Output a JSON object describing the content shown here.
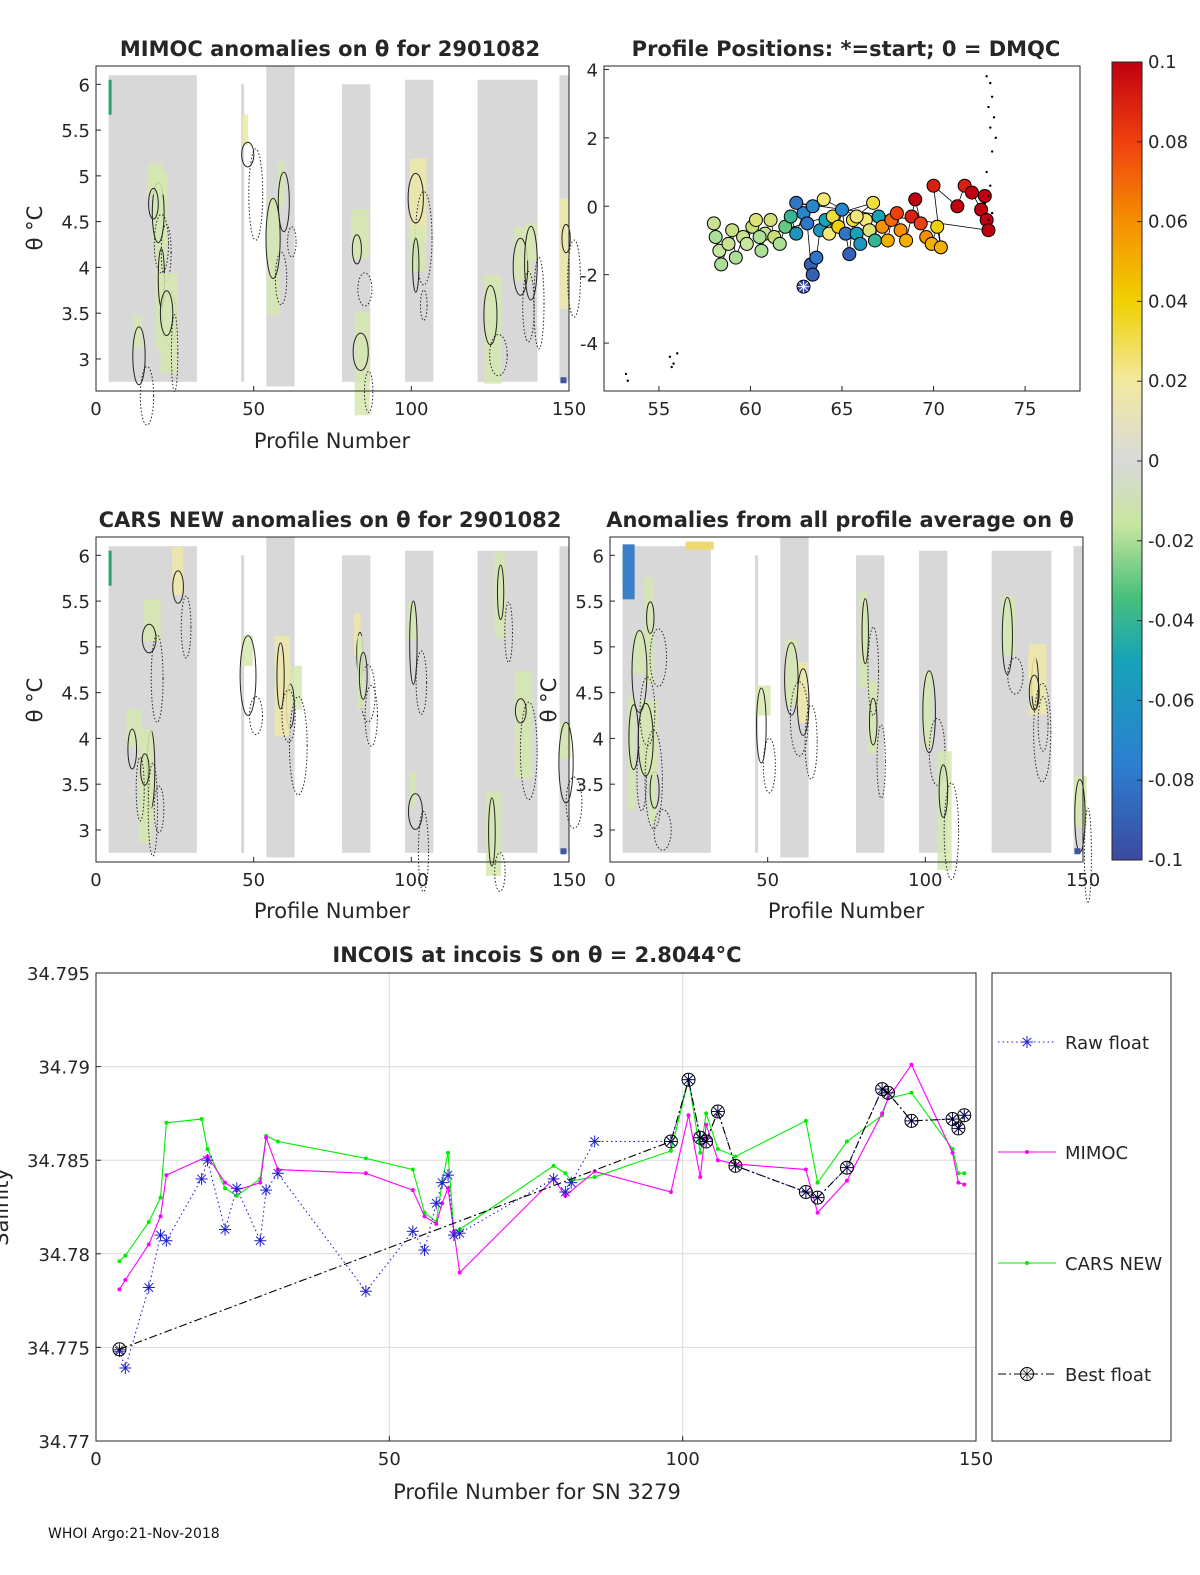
{
  "footer": "WHOI Argo:21-Nov-2018",
  "panels": {
    "mimoc": {
      "title": "MIMOC anomalies on θ  for 2901082",
      "xlabel": "Profile Number",
      "ylabel": "θ °C"
    },
    "positions": {
      "title": "Profile Positions: *=start; 0 = DMQC"
    },
    "cars": {
      "title": "CARS NEW anomalies on θ for 2901082",
      "xlabel": "Profile Number",
      "ylabel": "θ °C"
    },
    "allavg": {
      "title": "Anomalies from all profile average on θ",
      "xlabel": "Profile Number",
      "ylabel": "θ °C"
    }
  },
  "colors": {
    "raw": "#1f1fd0",
    "mimoc": "#ff00ff",
    "cars": "#00ee00",
    "best": "#000000",
    "contour_fill": "#d8d8d8"
  },
  "chart_data": [
    {
      "type": "heatmap",
      "id": "mimoc",
      "title": "MIMOC anomalies on θ  for 2901082",
      "xlabel": "Profile Number",
      "ylabel": "θ °C",
      "xlim": [
        0,
        150
      ],
      "ylim": [
        2.65,
        6.2
      ],
      "xticks": [
        0,
        50,
        100,
        150
      ],
      "yticks": [
        3,
        3.5,
        4,
        4.5,
        5,
        5.5,
        6
      ],
      "profile_blocks": [
        [
          4,
          32,
          2.75,
          6.1
        ],
        [
          46,
          47,
          2.75,
          6.0
        ],
        [
          54,
          63,
          2.7,
          6.2
        ],
        [
          78,
          87,
          2.75,
          6.0
        ],
        [
          98,
          107,
          2.75,
          6.05
        ],
        [
          121,
          140,
          2.75,
          6.05
        ],
        [
          147,
          150,
          2.75,
          6.1
        ]
      ]
    },
    {
      "type": "scatter",
      "id": "positions",
      "title": "Profile Positions: *=start; 0 = DMQC",
      "xlim": [
        52,
        78
      ],
      "ylim": [
        -5.4,
        4.1
      ],
      "xticks": [
        55,
        60,
        65,
        70,
        75
      ],
      "yticks": [
        -4,
        -2,
        0,
        2,
        4
      ],
      "start": [
        62.9,
        -2.35
      ],
      "points": [
        [
          58,
          -0.5,
          -0.01
        ],
        [
          58.1,
          -0.9,
          -0.02
        ],
        [
          58.3,
          -1.3,
          -0.015
        ],
        [
          58.4,
          -1.7,
          -0.02
        ],
        [
          58.8,
          -1.1,
          -0.01
        ],
        [
          59,
          -0.7,
          -0.005
        ],
        [
          59.2,
          -1.5,
          -0.02
        ],
        [
          59.6,
          -0.9,
          -0.01
        ],
        [
          59.8,
          -1.1,
          -0.015
        ],
        [
          60.1,
          -0.6,
          0.0
        ],
        [
          60.3,
          -0.4,
          0.01
        ],
        [
          60.6,
          -1.3,
          -0.02
        ],
        [
          60.8,
          -0.8,
          -0.01
        ],
        [
          61.1,
          -0.4,
          0.005
        ],
        [
          61.3,
          -0.9,
          0.0
        ],
        [
          61.6,
          -1.1,
          -0.02
        ],
        [
          61.9,
          -0.6,
          -0.03
        ],
        [
          62.2,
          -0.3,
          -0.04
        ],
        [
          62.5,
          -0.8,
          -0.06
        ],
        [
          62.9,
          -0.2,
          -0.07
        ],
        [
          63.1,
          -0.5,
          -0.08
        ],
        [
          63.3,
          -1.7,
          -0.09
        ],
        [
          63.4,
          -2.0,
          -0.09
        ],
        [
          63.6,
          -1.5,
          -0.08
        ],
        [
          63.8,
          -0.7,
          -0.06
        ],
        [
          64.1,
          -0.4,
          -0.05
        ],
        [
          64.3,
          -0.8,
          0.02
        ],
        [
          64.5,
          -0.3,
          0.03
        ],
        [
          64.8,
          -0.6,
          0.04
        ],
        [
          65,
          -0.1,
          -0.07
        ],
        [
          65.2,
          -0.8,
          -0.08
        ],
        [
          65.4,
          -1.4,
          -0.09
        ],
        [
          65.6,
          -0.4,
          0.03
        ],
        [
          65.8,
          -0.8,
          -0.05
        ],
        [
          66,
          -1.1,
          -0.06
        ],
        [
          66.3,
          -0.4,
          0.02
        ],
        [
          66.5,
          -0.7,
          0.01
        ],
        [
          66.8,
          -1.0,
          -0.04
        ],
        [
          67,
          -0.3,
          -0.05
        ],
        [
          67.2,
          -0.6,
          0.06
        ],
        [
          67.5,
          -1.0,
          0.05
        ],
        [
          67.7,
          -0.4,
          0.07
        ],
        [
          68,
          -0.2,
          0.08
        ],
        [
          68.2,
          -0.7,
          0.06
        ],
        [
          68.5,
          -1.0,
          0.05
        ],
        [
          68.8,
          -0.3,
          0.09
        ],
        [
          69,
          0.2,
          0.1
        ],
        [
          69.3,
          -0.5,
          0.08
        ],
        [
          69.6,
          -0.9,
          0.06
        ],
        [
          69.9,
          -1.1,
          0.05
        ],
        [
          70.2,
          -0.6,
          0.04
        ],
        [
          70.4,
          -1.2,
          0.05
        ],
        [
          70,
          0.6,
          0.09
        ],
        [
          71.3,
          0.0,
          0.1
        ],
        [
          71.7,
          0.6,
          0.09
        ],
        [
          72.1,
          0.4,
          0.1
        ],
        [
          72.6,
          -0.1,
          0.1
        ],
        [
          72.8,
          0.3,
          0.1
        ],
        [
          72.9,
          -0.4,
          0.1
        ],
        [
          73,
          -0.7,
          0.1
        ],
        [
          62.5,
          0.1,
          -0.08
        ],
        [
          63.4,
          0.0,
          -0.07
        ],
        [
          64,
          0.2,
          0.02
        ],
        [
          65.8,
          -0.3,
          0.02
        ],
        [
          66.7,
          0.1,
          0.03
        ],
        [
          60.5,
          -0.9,
          -0.02
        ]
      ]
    },
    {
      "type": "heatmap",
      "id": "cars",
      "title": "CARS NEW anomalies on θ for 2901082",
      "xlabel": "Profile Number",
      "ylabel": "θ °C",
      "xlim": [
        0,
        150
      ],
      "ylim": [
        2.65,
        6.2
      ],
      "xticks": [
        0,
        50,
        100,
        150
      ],
      "yticks": [
        3,
        3.5,
        4,
        4.5,
        5,
        5.5,
        6
      ]
    },
    {
      "type": "heatmap",
      "id": "allavg",
      "title": "Anomalies from all profile average on θ",
      "xlabel": "Profile Number",
      "ylabel": "θ °C",
      "xlim": [
        0,
        150
      ],
      "ylim": [
        2.65,
        6.2
      ],
      "xticks": [
        0,
        50,
        100,
        150
      ],
      "yticks": [
        3,
        3.5,
        4,
        4.5,
        5,
        5.5,
        6
      ]
    },
    {
      "type": "colorbar",
      "id": "colorbar",
      "range": [
        -0.1,
        0.1
      ],
      "tick_labels": [
        "0.1",
        "0.08",
        "0.06",
        "0.04",
        "0.02",
        "0",
        "-0.02",
        "-0.04",
        "-0.06",
        "-0.08",
        "-0.1"
      ],
      "tick_values": [
        0.1,
        0.08,
        0.06,
        0.04,
        0.02,
        0,
        -0.02,
        -0.04,
        -0.06,
        -0.08,
        -0.1
      ]
    },
    {
      "type": "line",
      "id": "incois",
      "title": "INCOIS at incois S on θ = 2.8044°C",
      "xlabel": "Profile Number for SN 3279",
      "ylabel": "Salinity",
      "xlim": [
        0,
        150
      ],
      "ylim": [
        34.77,
        34.795
      ],
      "xticks": [
        0,
        50,
        100,
        150
      ],
      "yticks": [
        34.77,
        34.775,
        34.78,
        34.785,
        34.79,
        34.795
      ],
      "ytick_labels": [
        "34.77",
        "34.775",
        "34.78",
        "34.785",
        "34.79",
        "34.795"
      ],
      "series": [
        {
          "name": "Raw float",
          "style": "dotted-star",
          "x": [
            4,
            5,
            9,
            11,
            12,
            18,
            19,
            22,
            24,
            28,
            29,
            31,
            46,
            54,
            56,
            58,
            59,
            60,
            61,
            62,
            78,
            80,
            81,
            85,
            98,
            101,
            103,
            104,
            106,
            109,
            121,
            123,
            128,
            134,
            135,
            139,
            146,
            147,
            148
          ],
          "y": [
            34.7748,
            34.7739,
            34.7782,
            34.781,
            34.7807,
            34.784,
            34.785,
            34.7813,
            34.7835,
            34.7807,
            34.7834,
            34.7843,
            34.778,
            34.7812,
            34.7802,
            34.7827,
            34.7838,
            34.7842,
            34.781,
            34.7811,
            34.784,
            34.7833,
            34.7838,
            34.786,
            34.786,
            34.7893,
            34.7862,
            34.786,
            34.7876,
            34.7847,
            34.7833,
            34.783,
            34.7846,
            34.7888,
            34.7886,
            34.7871,
            34.7872,
            34.7867,
            34.7874
          ]
        },
        {
          "name": "MIMOC",
          "style": "solid-dot",
          "x": [
            4,
            5,
            9,
            11,
            12,
            19,
            22,
            24,
            28,
            29,
            31,
            46,
            54,
            56,
            58,
            59,
            60,
            61,
            62,
            78,
            80,
            85,
            98,
            101,
            103,
            104,
            106,
            109,
            121,
            123,
            128,
            134,
            135,
            139,
            146,
            147,
            148
          ],
          "y": [
            34.7781,
            34.7786,
            34.7805,
            34.782,
            34.7842,
            34.7852,
            34.7838,
            34.7834,
            34.7838,
            34.7862,
            34.7845,
            34.7843,
            34.7834,
            34.782,
            34.7816,
            34.7827,
            34.7835,
            34.7812,
            34.779,
            34.784,
            34.7831,
            34.7844,
            34.7833,
            34.7874,
            34.7841,
            34.7869,
            34.785,
            34.7848,
            34.7845,
            34.7822,
            34.7839,
            34.7875,
            34.7883,
            34.7901,
            34.7854,
            34.7838,
            34.7837
          ]
        },
        {
          "name": "CARS NEW",
          "style": "solid-dot",
          "x": [
            4,
            5,
            9,
            11,
            12,
            18,
            19,
            22,
            24,
            28,
            29,
            31,
            46,
            54,
            56,
            58,
            59,
            60,
            61,
            62,
            78,
            80,
            81,
            85,
            98,
            101,
            103,
            104,
            106,
            109,
            121,
            123,
            128,
            134,
            135,
            139,
            146,
            147,
            148
          ],
          "y": [
            34.7796,
            34.7799,
            34.7817,
            34.783,
            34.787,
            34.7872,
            34.7856,
            34.7835,
            34.7831,
            34.784,
            34.7863,
            34.786,
            34.7851,
            34.7845,
            34.7822,
            34.7817,
            34.7838,
            34.7854,
            34.7812,
            34.7813,
            34.7847,
            34.7843,
            34.7839,
            34.7841,
            34.7855,
            34.7893,
            34.7854,
            34.7875,
            34.7856,
            34.7852,
            34.7871,
            34.7838,
            34.786,
            34.7874,
            34.7883,
            34.7886,
            34.7856,
            34.7843,
            34.7843
          ]
        },
        {
          "name": "Best float",
          "style": "dashdot-circle",
          "x": [
            4,
            98,
            101,
            103,
            104,
            106,
            109,
            121,
            123,
            128,
            134,
            135,
            139,
            146,
            147,
            148
          ],
          "y": [
            34.7749,
            34.786,
            34.7893,
            34.7862,
            34.786,
            34.7876,
            34.7847,
            34.7833,
            34.783,
            34.7846,
            34.7888,
            34.7886,
            34.7871,
            34.7872,
            34.7867,
            34.7874
          ]
        }
      ]
    }
  ]
}
